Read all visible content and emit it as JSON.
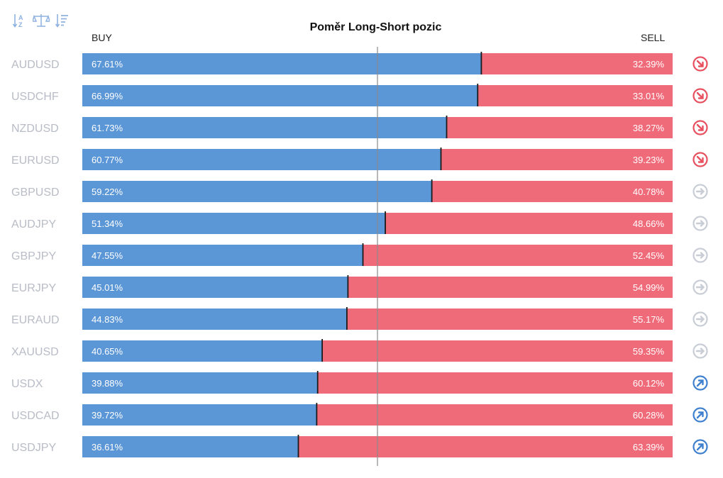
{
  "toolbar": {
    "icons": [
      "sort-alphabetical-icon",
      "balance-scale-icon",
      "sort-descending-icon"
    ]
  },
  "chart_data": {
    "type": "bar",
    "title": "Poměr Long-Short pozic",
    "buy_label": "BUY",
    "sell_label": "SELL",
    "categories": [
      "AUDUSD",
      "USDCHF",
      "NZDUSD",
      "EURUSD",
      "GBPUSD",
      "AUDJPY",
      "GBPJPY",
      "EURJPY",
      "EURAUD",
      "XAUUSD",
      "USDX",
      "USDCAD",
      "USDJPY"
    ],
    "series": [
      {
        "name": "BUY",
        "values": [
          67.61,
          66.99,
          61.73,
          60.77,
          59.22,
          51.34,
          47.55,
          45.01,
          44.83,
          40.65,
          39.88,
          39.72,
          36.61
        ],
        "color": "#5b96d6"
      },
      {
        "name": "SELL",
        "values": [
          32.39,
          33.01,
          38.27,
          39.23,
          40.78,
          48.66,
          52.45,
          54.99,
          55.17,
          59.35,
          60.12,
          60.28,
          63.39
        ],
        "color": "#f06b7a"
      }
    ],
    "signals": [
      "down",
      "down",
      "down",
      "down",
      "neutral",
      "neutral",
      "neutral",
      "neutral",
      "neutral",
      "neutral",
      "up",
      "up",
      "up"
    ],
    "signal_colors": {
      "down": "#e8505f",
      "neutral": "#c9cdd6",
      "up": "#3f80cf"
    },
    "stacked": true,
    "ylim": [
      0,
      100
    ],
    "midline": 50
  }
}
